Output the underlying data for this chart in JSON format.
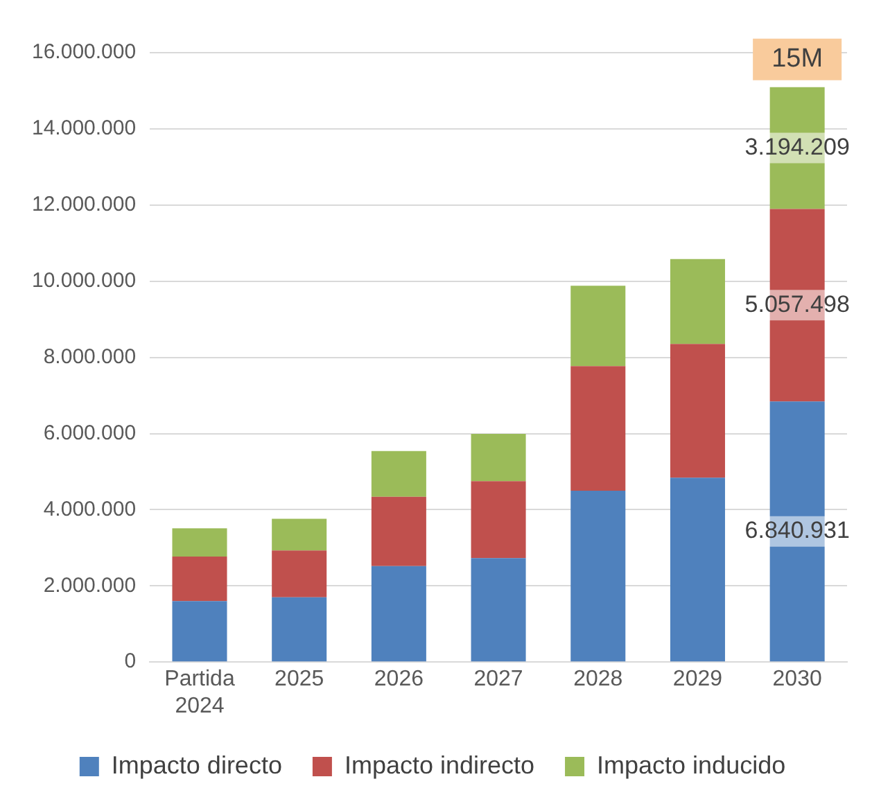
{
  "chart_data": {
    "type": "bar",
    "stacked": true,
    "categories": [
      "Partida 2024",
      "2025",
      "2026",
      "2027",
      "2028",
      "2029",
      "2030"
    ],
    "series": [
      {
        "name": "Impacto directo",
        "color": "#4f81bd",
        "values": [
          1600000,
          1700000,
          2520000,
          2730000,
          4500000,
          4840000,
          6840931
        ],
        "value_labels": [
          null,
          null,
          null,
          null,
          null,
          null,
          "6.840.931"
        ]
      },
      {
        "name": "Impacto indirecto",
        "color": "#c0504d",
        "values": [
          1170000,
          1230000,
          1820000,
          2020000,
          3270000,
          3510000,
          5057498
        ],
        "value_labels": [
          null,
          null,
          null,
          null,
          null,
          null,
          "5.057.498"
        ]
      },
      {
        "name": "Impacto inducido",
        "color": "#9bbb59",
        "values": [
          740000,
          830000,
          1200000,
          1240000,
          2110000,
          2230000,
          3194209
        ],
        "value_labels": [
          null,
          null,
          null,
          null,
          null,
          null,
          "3.194.209"
        ]
      }
    ],
    "totals": [
      null,
      null,
      null,
      null,
      null,
      null,
      "15M"
    ],
    "ylim": [
      0,
      16000000
    ],
    "yticks": [
      0,
      {
        "value": 2000000,
        "label": "2.000.000"
      },
      {
        "value": 4000000,
        "label": "4.000.000"
      },
      {
        "value": 6000000,
        "label": "6.000.000"
      },
      {
        "value": 8000000,
        "label": "8.000.000"
      },
      {
        "value": 10000000,
        "label": "10.000.000"
      },
      {
        "value": 12000000,
        "label": "12.000.000"
      },
      {
        "value": 14000000,
        "label": "14.000.000"
      },
      {
        "value": 16000000,
        "label": "16.000.000"
      }
    ],
    "grid": "y",
    "legend": "bottom"
  }
}
